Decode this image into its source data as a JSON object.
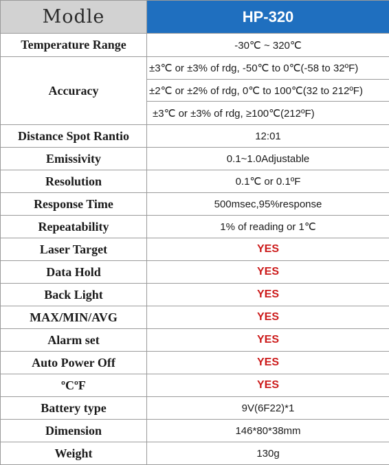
{
  "header": {
    "label": "Modle",
    "value": "HP-320"
  },
  "accent_color": "#1f6fbf",
  "yes_color": "#cc1a1a",
  "rows": [
    {
      "label": "Temperature Range",
      "value": "-30℃ ~ 320℃"
    },
    {
      "label": "Accuracy",
      "lines": [
        "±3℃ or ±3% of rdg, -50℃ to 0℃(-58 to 32ºF)",
        "±2℃ or ±2% of rdg, 0℃ to 100℃(32 to 212ºF)",
        "±3℃ or ±3% of rdg, ≥100℃(212ºF)"
      ]
    },
    {
      "label": "Distance Spot Rantio",
      "value": "12:01"
    },
    {
      "label": "Emissivity",
      "value": "0.1~1.0Adjustable"
    },
    {
      "label": "Resolution",
      "value": "0.1℃ or 0.1ºF"
    },
    {
      "label": "Response Time",
      "value": "500msec,95%response"
    },
    {
      "label": "Repeatability",
      "value": "1% of reading or 1℃"
    },
    {
      "label": "Laser Target",
      "value": "YES"
    },
    {
      "label": "Data Hold",
      "value": "YES"
    },
    {
      "label": "Back Light",
      "value": "YES"
    },
    {
      "label": "MAX/MIN/AVG",
      "value": "YES"
    },
    {
      "label": "Alarm set",
      "value": "YES"
    },
    {
      "label": "Auto Power Off",
      "value": "YES"
    },
    {
      "label": "ºCºF",
      "value": "YES"
    },
    {
      "label": "Battery type",
      "value": "9V(6F22)*1"
    },
    {
      "label": "Dimension",
      "value": "146*80*38mm"
    },
    {
      "label": "Weight",
      "value": "130g"
    }
  ]
}
